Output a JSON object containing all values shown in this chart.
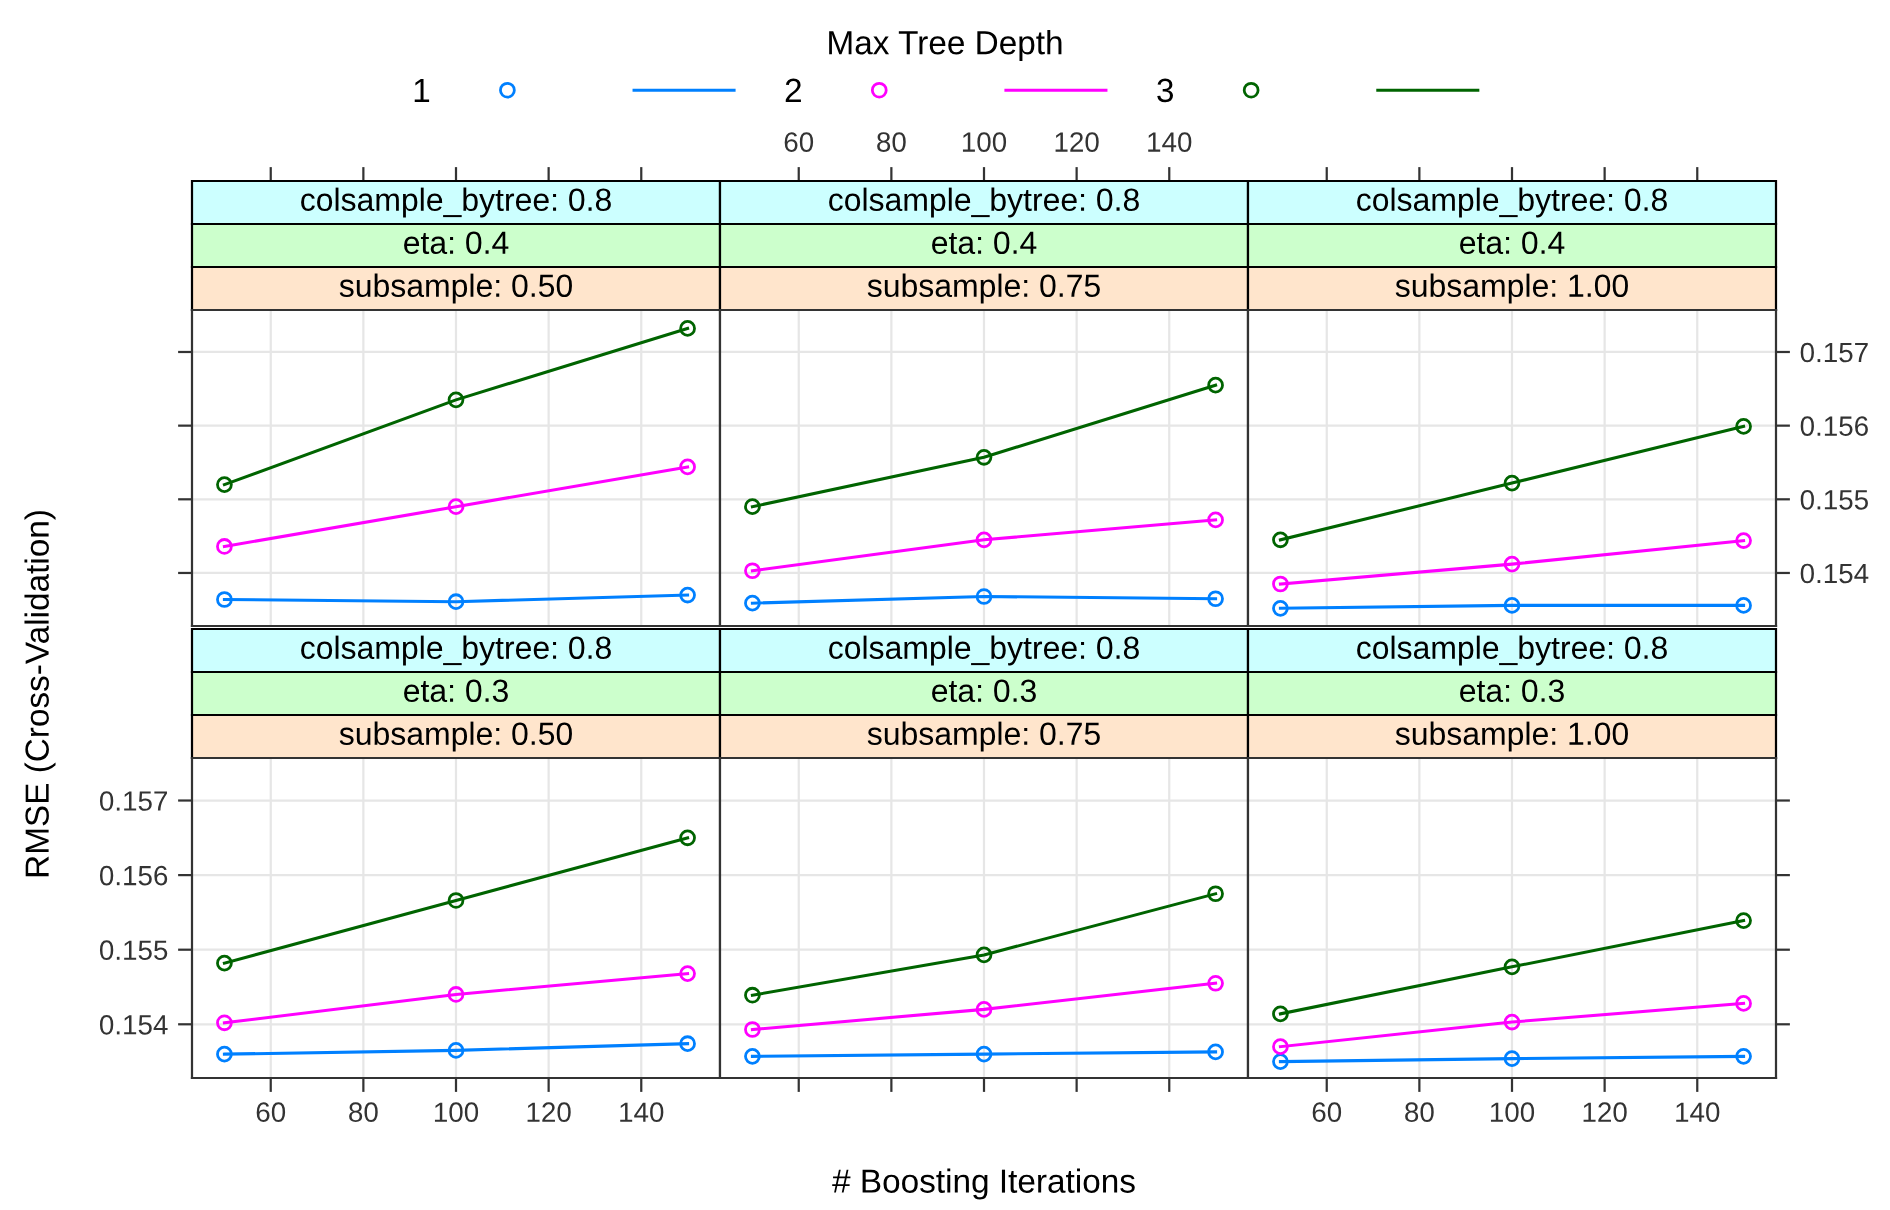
{
  "chart_data": [
    {
      "type": "line",
      "xlabel": "# Boosting Iterations",
      "ylabel": "RMSE (Cross-Validation)",
      "legend_title": "Max Tree Depth",
      "legend": "top",
      "marker": "circle",
      "grid": true,
      "tick_labels": false,
      "annotations": [
        "colsample_bytree: 0.8",
        "eta: 0.4",
        "subsample: 0.50"
      ],
      "x": [
        50,
        100,
        150
      ],
      "xlim": [
        43,
        157
      ],
      "xticks": [
        60,
        80,
        100,
        120,
        140
      ],
      "ylim": [
        0.15328,
        0.15757
      ],
      "yticks": [
        0.154,
        0.155,
        0.156,
        0.157
      ],
      "series": [
        {
          "name": "1",
          "color": "#0080ff",
          "values": [
            0.15364,
            0.15361,
            0.1537
          ]
        },
        {
          "name": "2",
          "color": "#ff00ff",
          "values": [
            0.15436,
            0.1549,
            0.15544
          ]
        },
        {
          "name": "3",
          "color": "#006400",
          "values": [
            0.1552,
            0.15635,
            0.15732
          ]
        }
      ]
    },
    {
      "type": "line",
      "marker": "circle",
      "grid": true,
      "tick_labels": "x",
      "annotations": [
        "colsample_bytree: 0.8",
        "eta: 0.4",
        "subsample: 0.75"
      ],
      "x": [
        50,
        100,
        150
      ],
      "xlim": [
        43,
        157
      ],
      "xticks": [
        60,
        80,
        100,
        120,
        140
      ],
      "ylim": [
        0.15328,
        0.15757
      ],
      "yticks": [
        0.154,
        0.155,
        0.156,
        0.157
      ],
      "series": [
        {
          "color": "#0080ff",
          "values": [
            0.15359,
            0.15368,
            0.15365
          ]
        },
        {
          "color": "#ff00ff",
          "values": [
            0.15403,
            0.15445,
            0.15472
          ]
        },
        {
          "color": "#006400",
          "values": [
            0.1549,
            0.15557,
            0.15655
          ]
        }
      ]
    },
    {
      "type": "line",
      "marker": "circle",
      "grid": true,
      "tick_labels": "y",
      "annotations": [
        "colsample_bytree: 0.8",
        "eta: 0.4",
        "subsample: 1.00"
      ],
      "x": [
        50,
        100,
        150
      ],
      "xlim": [
        43,
        157
      ],
      "xticks": [
        60,
        80,
        100,
        120,
        140
      ],
      "ylim": [
        0.15328,
        0.15757
      ],
      "yticks": [
        0.154,
        0.155,
        0.156,
        0.157
      ],
      "series": [
        {
          "color": "#0080ff",
          "values": [
            0.15352,
            0.15356,
            0.15356
          ]
        },
        {
          "color": "#ff00ff",
          "values": [
            0.15385,
            0.15412,
            0.15444
          ]
        },
        {
          "color": "#006400",
          "values": [
            0.15445,
            0.15522,
            0.15599
          ]
        }
      ]
    },
    {
      "type": "line",
      "marker": "circle",
      "grid": true,
      "annotations": [
        "colsample_bytree: 0.8",
        "eta: 0.3",
        "subsample: 0.50"
      ],
      "x": [
        50,
        100,
        150
      ],
      "xlim": [
        43,
        157
      ],
      "xticks": [
        60,
        80,
        100,
        120,
        140
      ],
      "ylim": [
        0.15328,
        0.15757
      ],
      "yticks": [
        0.154,
        0.155,
        0.156,
        0.157
      ],
      "series": [
        {
          "color": "#0080ff",
          "values": [
            0.1536,
            0.15365,
            0.15374
          ]
        },
        {
          "color": "#ff00ff",
          "values": [
            0.15402,
            0.1544,
            0.15468
          ]
        },
        {
          "color": "#006400",
          "values": [
            0.15482,
            0.15566,
            0.1565
          ]
        }
      ]
    },
    {
      "type": "line",
      "marker": "circle",
      "grid": true,
      "tick_labels": false,
      "annotations": [
        "colsample_bytree: 0.8",
        "eta: 0.3",
        "subsample: 0.75"
      ],
      "x": [
        50,
        100,
        150
      ],
      "xlim": [
        43,
        157
      ],
      "xticks": [
        60,
        80,
        100,
        120,
        140
      ],
      "ylim": [
        0.15328,
        0.15757
      ],
      "yticks": [
        0.154,
        0.155,
        0.156,
        0.157
      ],
      "series": [
        {
          "color": "#0080ff",
          "values": [
            0.15357,
            0.1536,
            0.15363
          ]
        },
        {
          "color": "#ff00ff",
          "values": [
            0.15393,
            0.1542,
            0.15455
          ]
        },
        {
          "color": "#006400",
          "values": [
            0.15439,
            0.15493,
            0.15575
          ]
        }
      ]
    },
    {
      "type": "line",
      "marker": "circle",
      "grid": true,
      "tick_labels": "x",
      "annotations": [
        "colsample_bytree: 0.8",
        "eta: 0.3",
        "subsample: 1.00"
      ],
      "x": [
        50,
        100,
        150
      ],
      "xlim": [
        43,
        157
      ],
      "xticks": [
        60,
        80,
        100,
        120,
        140
      ],
      "ylim": [
        0.15328,
        0.15757
      ],
      "yticks": [
        0.154,
        0.155,
        0.156,
        0.157
      ],
      "series": [
        {
          "color": "#0080ff",
          "values": [
            0.1535,
            0.15354,
            0.15357
          ]
        },
        {
          "color": "#ff00ff",
          "values": [
            0.1537,
            0.15403,
            0.15428
          ]
        },
        {
          "color": "#006400",
          "values": [
            0.15414,
            0.15477,
            0.15539
          ]
        }
      ]
    }
  ]
}
